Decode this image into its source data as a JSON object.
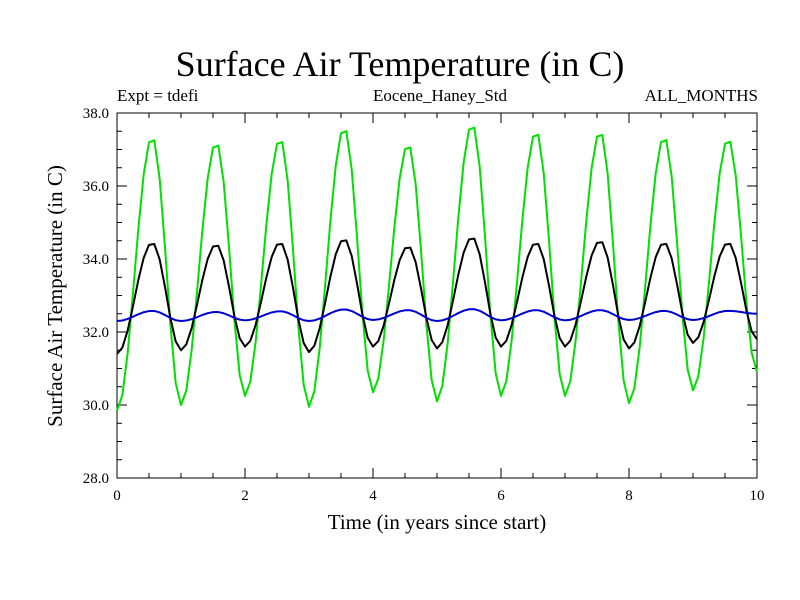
{
  "chart_data": {
    "type": "line",
    "title": "Surface Air Temperature (in C)",
    "subtitle_left": "Expt = tdefi",
    "subtitle_center": "Eocene_Haney_Std",
    "subtitle_right": "ALL_MONTHS",
    "xlabel": "Time (in years since start)",
    "ylabel": "Surface Air Temperature (in C)",
    "xlim": [
      0,
      10
    ],
    "ylim": [
      28.0,
      38.0
    ],
    "xticks": [
      0,
      2,
      4,
      6,
      8,
      10
    ],
    "xtick_labels": [
      "0",
      "2",
      "4",
      "6",
      "8",
      "10"
    ],
    "yticks": [
      28.0,
      30.0,
      32.0,
      34.0,
      36.0,
      38.0
    ],
    "ytick_labels": [
      "28.0",
      "30.0",
      "32.0",
      "34.0",
      "36.0",
      "38.0"
    ],
    "grid": false,
    "legend": "none",
    "series": [
      {
        "color": "#00e000",
        "peaks": [
          37.35,
          37.2,
          37.3,
          37.6,
          37.15,
          37.7,
          37.5,
          37.5,
          37.35,
          37.3
        ],
        "troughs": [
          29.85,
          30.0,
          30.25,
          29.95,
          30.35,
          30.1,
          30.25,
          30.25,
          30.05,
          30.4,
          30.9
        ]
      },
      {
        "color": "#000000",
        "peaks": [
          34.45,
          34.4,
          34.45,
          34.55,
          34.35,
          34.6,
          34.45,
          34.5,
          34.45,
          34.45
        ],
        "troughs": [
          31.4,
          31.5,
          31.6,
          31.45,
          31.6,
          31.55,
          31.6,
          31.6,
          31.55,
          31.7,
          31.8
        ]
      },
      {
        "color": "#0000d0",
        "peaks": [
          32.58,
          32.55,
          32.57,
          32.62,
          32.6,
          32.63,
          32.6,
          32.6,
          32.58,
          32.58
        ],
        "troughs": [
          32.3,
          32.3,
          32.32,
          32.3,
          32.33,
          32.3,
          32.32,
          32.32,
          32.33,
          32.33,
          32.5
        ]
      }
    ]
  }
}
